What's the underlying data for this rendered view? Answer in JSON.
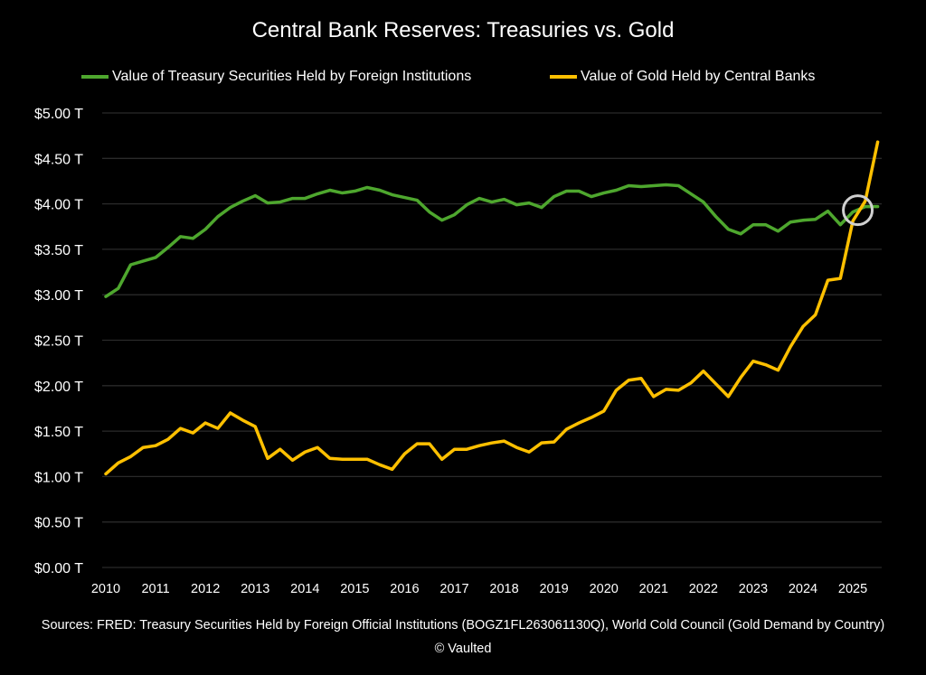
{
  "chart_data": {
    "type": "line",
    "title": "Central Bank Reserves: Treasuries vs. Gold",
    "xlabel": "",
    "ylabel": "",
    "xlim": [
      2010,
      2025.5
    ],
    "ylim": [
      0,
      5
    ],
    "grid": true,
    "legend_placement": "top",
    "x_tick_labels": [
      "2010",
      "2011",
      "2012",
      "2013",
      "2014",
      "2015",
      "2016",
      "2017",
      "2018",
      "2019",
      "2020",
      "2021",
      "2022",
      "2023",
      "2024",
      "2025"
    ],
    "y_tick_labels": [
      "$0.00 T",
      "$0.50 T",
      "$1.00 T",
      "$1.50 T",
      "$2.00 T",
      "$2.50 T",
      "$3.00 T",
      "$3.50 T",
      "$4.00 T",
      "$4.50 T",
      "$5.00 T"
    ],
    "x_step": 0.25,
    "series": [
      {
        "name": "Value of Treasury Securities Held by Foreign Institutions",
        "color": "#4ea72e",
        "values": [
          2.98,
          3.07,
          3.33,
          3.37,
          3.41,
          3.52,
          3.64,
          3.62,
          3.72,
          3.86,
          3.96,
          4.03,
          4.09,
          4.01,
          4.02,
          4.06,
          4.06,
          4.11,
          4.15,
          4.12,
          4.14,
          4.18,
          4.15,
          4.1,
          4.07,
          4.04,
          3.91,
          3.82,
          3.88,
          3.99,
          4.06,
          4.02,
          4.05,
          3.99,
          4.01,
          3.96,
          4.08,
          4.14,
          4.14,
          4.08,
          4.12,
          4.15,
          4.2,
          4.19,
          4.2,
          4.21,
          4.2,
          4.11,
          4.02,
          3.86,
          3.72,
          3.67,
          3.77,
          3.77,
          3.7,
          3.8,
          3.82,
          3.83,
          3.92,
          3.77,
          3.91,
          3.97,
          3.97
        ]
      },
      {
        "name": "Value of Gold Held by Central Banks",
        "color": "#ffc000",
        "values": [
          1.03,
          1.15,
          1.22,
          1.32,
          1.34,
          1.41,
          1.53,
          1.48,
          1.59,
          1.53,
          1.7,
          1.62,
          1.55,
          1.2,
          1.3,
          1.18,
          1.27,
          1.32,
          1.2,
          1.19,
          1.19,
          1.19,
          1.13,
          1.08,
          1.25,
          1.36,
          1.36,
          1.19,
          1.3,
          1.3,
          1.34,
          1.37,
          1.39,
          1.32,
          1.27,
          1.37,
          1.38,
          1.52,
          1.59,
          1.65,
          1.72,
          1.95,
          2.06,
          2.08,
          1.88,
          1.96,
          1.95,
          2.03,
          2.16,
          2.02,
          1.88,
          2.09,
          2.27,
          2.23,
          2.17,
          2.43,
          2.65,
          2.78,
          3.16,
          3.18,
          3.81,
          4.03,
          4.68
        ]
      }
    ],
    "annotations": [
      {
        "type": "circle",
        "x": 2025.1,
        "y": 3.93,
        "color": "#d0d0d0"
      }
    ]
  },
  "footer": {
    "sources": "Sources: FRED: Treasury Securities Held by Foreign Official Institutions (BOGZ1FL263061130Q), World Cold Council (Gold Demand by Country)",
    "credit": "© Vaulted"
  }
}
